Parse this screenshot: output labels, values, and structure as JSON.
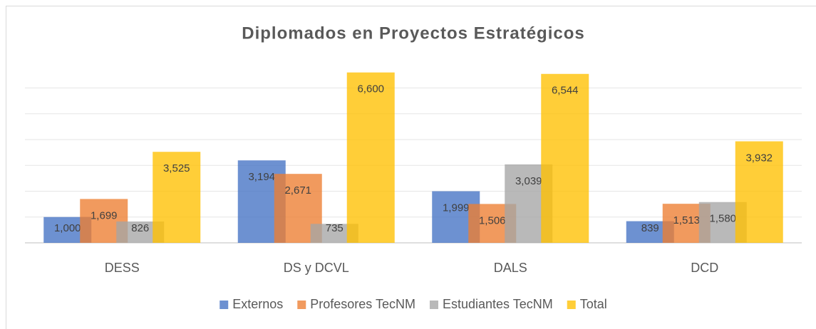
{
  "chart_data": {
    "type": "bar",
    "title": "Diplomados en Proyectos Estratégicos",
    "categories": [
      "DESS",
      "DS y DCVL",
      "DALS",
      "DCD"
    ],
    "series": [
      {
        "name": "Externos",
        "color": "#4472c4",
        "values": [
          1000,
          3194,
          1999,
          839
        ],
        "value_labels": [
          "1,000",
          "3,194",
          "1,999",
          "839"
        ]
      },
      {
        "name": "Profesores TecNM",
        "color": "#ed7d31",
        "values": [
          1699,
          2671,
          1506,
          1513
        ],
        "value_labels": [
          "1,699",
          "2,671",
          "1,506",
          "1,513"
        ]
      },
      {
        "name": "Estudiantes TecNM",
        "color": "#a5a5a5",
        "values": [
          826,
          735,
          3039,
          1580
        ],
        "value_labels": [
          "826",
          "735",
          "3,039",
          "1,580"
        ]
      },
      {
        "name": "Total",
        "color": "#ffc000",
        "values": [
          3525,
          6600,
          6544,
          3932
        ],
        "value_labels": [
          "3,525",
          "6,600",
          "6,544",
          "3,932"
        ]
      }
    ],
    "ylim": [
      0,
      7000
    ],
    "yticks": [
      0,
      1000,
      2000,
      3000,
      4000,
      5000,
      6000
    ],
    "grid": true,
    "legend": "bottom"
  }
}
